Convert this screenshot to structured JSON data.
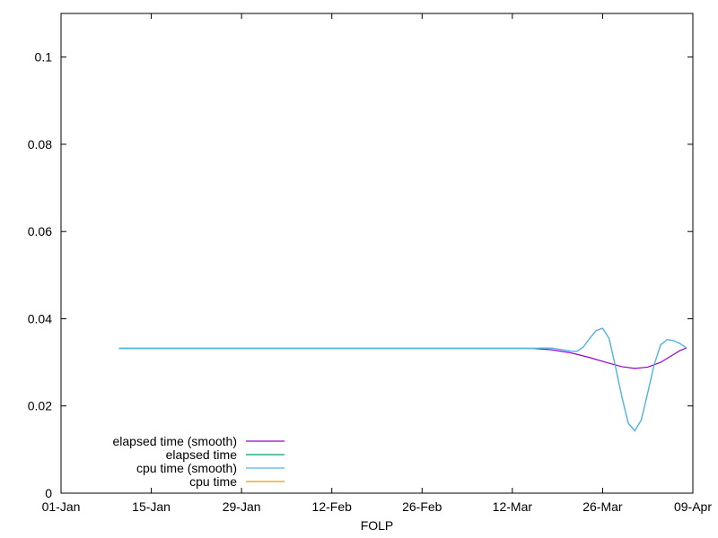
{
  "chart_data": {
    "type": "line",
    "title": "",
    "xlabel": "FOLP",
    "ylabel": "",
    "x_type": "date",
    "xlim": [
      "2021-01-01",
      "2021-04-09"
    ],
    "ylim": [
      0,
      0.11
    ],
    "x_ticks": [
      {
        "date": "2021-01-01",
        "label": "01-Jan"
      },
      {
        "date": "2021-01-15",
        "label": "15-Jan"
      },
      {
        "date": "2021-01-29",
        "label": "29-Jan"
      },
      {
        "date": "2021-02-12",
        "label": "12-Feb"
      },
      {
        "date": "2021-02-26",
        "label": "26-Feb"
      },
      {
        "date": "2021-03-12",
        "label": "12-Mar"
      },
      {
        "date": "2021-03-26",
        "label": "26-Mar"
      },
      {
        "date": "2021-04-09",
        "label": "09-Apr"
      }
    ],
    "y_ticks": [
      {
        "value": 0,
        "label": "0"
      },
      {
        "value": 0.02,
        "label": "0.02"
      },
      {
        "value": 0.04,
        "label": "0.04"
      },
      {
        "value": 0.06,
        "label": "0.06"
      },
      {
        "value": 0.08,
        "label": "0.08"
      },
      {
        "value": 0.1,
        "label": "0.1"
      }
    ],
    "grid": false,
    "legend_position": "bottom-left",
    "series": [
      {
        "name": "elapsed time (smooth)",
        "color": "#9400d3",
        "points": [
          [
            "2021-01-10",
            0.0332
          ],
          [
            "2021-03-15",
            0.0332
          ],
          [
            "2021-03-18",
            0.0329
          ],
          [
            "2021-03-21",
            0.0322
          ],
          [
            "2021-03-24",
            0.0311
          ],
          [
            "2021-03-27",
            0.0298
          ],
          [
            "2021-03-29",
            0.029
          ],
          [
            "2021-03-31",
            0.0286
          ],
          [
            "2021-04-02",
            0.0289
          ],
          [
            "2021-04-04",
            0.03
          ],
          [
            "2021-04-06",
            0.0318
          ],
          [
            "2021-04-07",
            0.0327
          ],
          [
            "2021-04-08",
            0.0333
          ]
        ]
      },
      {
        "name": "elapsed time",
        "color": "#009e73",
        "points": [
          [
            "2021-01-10",
            0.0332
          ],
          [
            "2021-03-15",
            0.0332
          ],
          [
            "2021-03-18",
            0.0333
          ],
          [
            "2021-03-21",
            0.0326
          ],
          [
            "2021-03-22",
            0.0325
          ],
          [
            "2021-03-23",
            0.0335
          ],
          [
            "2021-03-24",
            0.0355
          ],
          [
            "2021-03-25",
            0.0373
          ],
          [
            "2021-03-26",
            0.0378
          ],
          [
            "2021-03-27",
            0.0355
          ],
          [
            "2021-03-28",
            0.029
          ],
          [
            "2021-03-29",
            0.022
          ],
          [
            "2021-03-30",
            0.016
          ],
          [
            "2021-03-31",
            0.0143
          ],
          [
            "2021-04-01",
            0.0168
          ],
          [
            "2021-04-02",
            0.023
          ],
          [
            "2021-04-03",
            0.0295
          ],
          [
            "2021-04-04",
            0.034
          ],
          [
            "2021-04-05",
            0.0352
          ],
          [
            "2021-04-06",
            0.035
          ],
          [
            "2021-04-07",
            0.0343
          ],
          [
            "2021-04-08",
            0.0333
          ]
        ]
      },
      {
        "name": "cpu time (smooth)",
        "color": "#56b4e9",
        "points": [
          [
            "2021-01-10",
            0.0332
          ],
          [
            "2021-03-15",
            0.0332
          ],
          [
            "2021-03-18",
            0.0333
          ],
          [
            "2021-03-21",
            0.0326
          ],
          [
            "2021-03-22",
            0.0325
          ],
          [
            "2021-03-23",
            0.0335
          ],
          [
            "2021-03-24",
            0.0355
          ],
          [
            "2021-03-25",
            0.0373
          ],
          [
            "2021-03-26",
            0.0378
          ],
          [
            "2021-03-27",
            0.0355
          ],
          [
            "2021-03-28",
            0.029
          ],
          [
            "2021-03-29",
            0.022
          ],
          [
            "2021-03-30",
            0.016
          ],
          [
            "2021-03-31",
            0.0143
          ],
          [
            "2021-04-01",
            0.0168
          ],
          [
            "2021-04-02",
            0.023
          ],
          [
            "2021-04-03",
            0.0295
          ],
          [
            "2021-04-04",
            0.034
          ],
          [
            "2021-04-05",
            0.0352
          ],
          [
            "2021-04-06",
            0.035
          ],
          [
            "2021-04-07",
            0.0343
          ],
          [
            "2021-04-08",
            0.0333
          ]
        ]
      },
      {
        "name": "cpu time",
        "color": "#e69f00",
        "points": []
      }
    ]
  }
}
